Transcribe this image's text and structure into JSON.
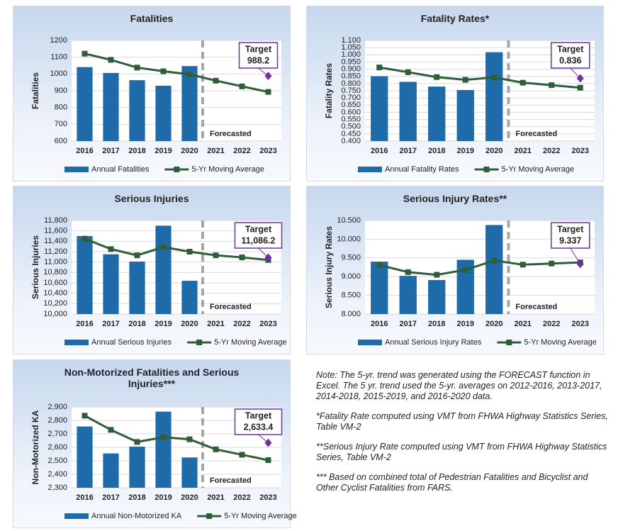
{
  "chart_data": [
    {
      "type": "bar-line",
      "title": "Fatalities",
      "y_label": "Fatalities",
      "categories": [
        "2016",
        "2017",
        "2018",
        "2019",
        "2020",
        "2021",
        "2022",
        "2023"
      ],
      "series": [
        {
          "name": "Annual Fatalities",
          "type": "bar",
          "color": "#1f6aa8",
          "values": [
            1041,
            1006,
            963,
            930,
            1047,
            null,
            null,
            null
          ]
        },
        {
          "name": "5-Yr Moving Average",
          "type": "line",
          "color": "#2f5d3a",
          "values": [
            1121,
            1084,
            1038,
            1016,
            998,
            960,
            926,
            893
          ]
        }
      ],
      "ylim": [
        600,
        1200
      ],
      "yticks": [
        600,
        700,
        800,
        900,
        1000,
        1100,
        1200
      ],
      "grid": true,
      "forecast_label": "Forecasted",
      "target": {
        "text": "Target",
        "value": 988.2,
        "color": "#7030a0"
      }
    },
    {
      "type": "bar-line",
      "title": "Fatality Rates*",
      "y_label": "Fatality Rates",
      "categories": [
        "2016",
        "2017",
        "2018",
        "2019",
        "2020",
        "2021",
        "2022",
        "2023"
      ],
      "series": [
        {
          "name": "Annual Fatality Rates",
          "type": "bar",
          "color": "#1f6aa8",
          "values": [
            0.851,
            0.812,
            0.779,
            0.755,
            1.018,
            null,
            null,
            null
          ]
        },
        {
          "name": "5-Yr Moving Average",
          "type": "line",
          "color": "#2f5d3a",
          "values": [
            0.912,
            0.879,
            0.845,
            0.826,
            0.843,
            0.806,
            0.789,
            0.771
          ]
        }
      ],
      "ylim": [
        0.4,
        1.1
      ],
      "yticks": [
        {
          "value": 0.4,
          "label": "0.400"
        },
        {
          "value": 0.45,
          "label": "0.450"
        },
        {
          "value": 0.5,
          "label": "0.500"
        },
        {
          "value": 0.55,
          "label": "0.550"
        },
        {
          "value": 0.6,
          "label": "0.600"
        },
        {
          "value": 0.65,
          "label": "0.650"
        },
        {
          "value": 0.7,
          "label": "0.700"
        },
        {
          "value": 0.75,
          "label": "0.750"
        },
        {
          "value": 0.8,
          "label": "0.800"
        },
        {
          "value": 0.85,
          "label": "0.850"
        },
        {
          "value": 0.9,
          "label": "0.900"
        },
        {
          "value": 0.95,
          "label": "0.950"
        },
        {
          "value": 1.0,
          "label": "1.000"
        },
        {
          "value": 1.05,
          "label": "1.050"
        },
        {
          "value": 1.1,
          "label": "1.100"
        }
      ],
      "grid": true,
      "forecast_label": "Forecasted",
      "target": {
        "text": "Target",
        "value": 0.836,
        "color": "#7030a0"
      }
    },
    {
      "type": "bar-line",
      "title": "Serious Injuries",
      "y_label": "Serious Injuries",
      "categories": [
        "2016",
        "2017",
        "2018",
        "2019",
        "2020",
        "2021",
        "2022",
        "2023"
      ],
      "series": [
        {
          "name": "Annual Serious Injuries",
          "type": "bar",
          "color": "#1f6aa8",
          "values": [
            11500,
            11150,
            11010,
            11700,
            10640,
            null,
            null,
            null
          ]
        },
        {
          "name": "5-Yr Moving Average",
          "type": "line",
          "color": "#2f5d3a",
          "values": [
            11450,
            11250,
            11130,
            11290,
            11200,
            11130,
            11090,
            11040
          ]
        }
      ],
      "ylim": [
        10000,
        11800
      ],
      "yticks": [
        {
          "value": 10000,
          "label": "10,000"
        },
        {
          "value": 10200,
          "label": "10,200"
        },
        {
          "value": 10400,
          "label": "10,400"
        },
        {
          "value": 10600,
          "label": "10,600"
        },
        {
          "value": 10800,
          "label": "10,800"
        },
        {
          "value": 11000,
          "label": "11,000"
        },
        {
          "value": 11200,
          "label": "11,200"
        },
        {
          "value": 11400,
          "label": "11,400"
        },
        {
          "value": 11600,
          "label": "11,600"
        },
        {
          "value": 11800,
          "label": "11,800"
        }
      ],
      "grid": true,
      "forecast_label": "Forecasted",
      "target": {
        "text": "Target",
        "value": 11086.2,
        "value_label": "11,086.2",
        "color": "#7030a0"
      }
    },
    {
      "type": "bar-line",
      "title": "Serious Injury Rates**",
      "y_label": "Serious Injury Rates",
      "categories": [
        "2016",
        "2017",
        "2018",
        "2019",
        "2020",
        "2021",
        "2022",
        "2023"
      ],
      "series": [
        {
          "name": "Annual Serious Injury Rates",
          "type": "bar",
          "color": "#1f6aa8",
          "values": [
            9.4,
            9.02,
            8.91,
            9.45,
            10.38,
            null,
            null,
            null
          ]
        },
        {
          "name": "5-Yr Moving Average",
          "type": "line",
          "color": "#2f5d3a",
          "values": [
            9.31,
            9.12,
            9.05,
            9.18,
            9.43,
            9.32,
            9.35,
            9.38
          ]
        }
      ],
      "ylim": [
        8,
        10.5
      ],
      "yticks": [
        {
          "value": 8,
          "label": "8.000"
        },
        {
          "value": 8.5,
          "label": "8.500"
        },
        {
          "value": 9,
          "label": "9.000"
        },
        {
          "value": 9.5,
          "label": "9.500"
        },
        {
          "value": 10,
          "label": "10.000"
        },
        {
          "value": 10.5,
          "label": "10.500"
        }
      ],
      "grid": true,
      "forecast_label": "Forecasted",
      "target": {
        "text": "Target",
        "value": 9.337,
        "color": "#7030a0"
      }
    },
    {
      "type": "bar-line",
      "title": "Non-Motorized Fatalities and Serious Injuries***",
      "y_label": "Non-Motorized KA",
      "categories": [
        "2016",
        "2017",
        "2018",
        "2019",
        "2020",
        "2021",
        "2022",
        "2023"
      ],
      "series": [
        {
          "name": "Annual Non-Motorized KA",
          "type": "bar",
          "color": "#1f6aa8",
          "values": [
            2755,
            2555,
            2605,
            2865,
            2525,
            null,
            null,
            null
          ]
        },
        {
          "name": "5-Yr Moving Average",
          "type": "line",
          "color": "#2f5d3a",
          "values": [
            2835,
            2730,
            2640,
            2675,
            2660,
            2585,
            2545,
            2505
          ]
        }
      ],
      "ylim": [
        2300,
        2900
      ],
      "yticks": [
        {
          "value": 2300,
          "label": "2,300"
        },
        {
          "value": 2400,
          "label": "2,400"
        },
        {
          "value": 2500,
          "label": "2,500"
        },
        {
          "value": 2600,
          "label": "2,600"
        },
        {
          "value": 2700,
          "label": "2,700"
        },
        {
          "value": 2800,
          "label": "2,800"
        },
        {
          "value": 2900,
          "label": "2,900"
        }
      ],
      "grid": true,
      "forecast_label": "Forecasted",
      "target": {
        "text": "Target",
        "value": 2633.4,
        "value_label": "2,633.4",
        "color": "#7030a0"
      }
    }
  ],
  "notes": [
    "Note:  The 5-yr. trend was generated using the FORECAST function in Excel. The 5 yr. trend used the 5-yr. averages on 2012-2016, 2013-2017, 2014-2018, 2015-2019, and 2016-2020 data.",
    "*Fatality Rate computed using VMT from FHWA Highway Statistics Series, Table VM-2",
    "**Serious Injury Rate computed using VMT from FHWA Highway Statistics Series, Table VM-2",
    "*** Based on combined total of Pedestrian Fatalities and Bicyclist and Other Cyclist Fatalities from FARS."
  ]
}
